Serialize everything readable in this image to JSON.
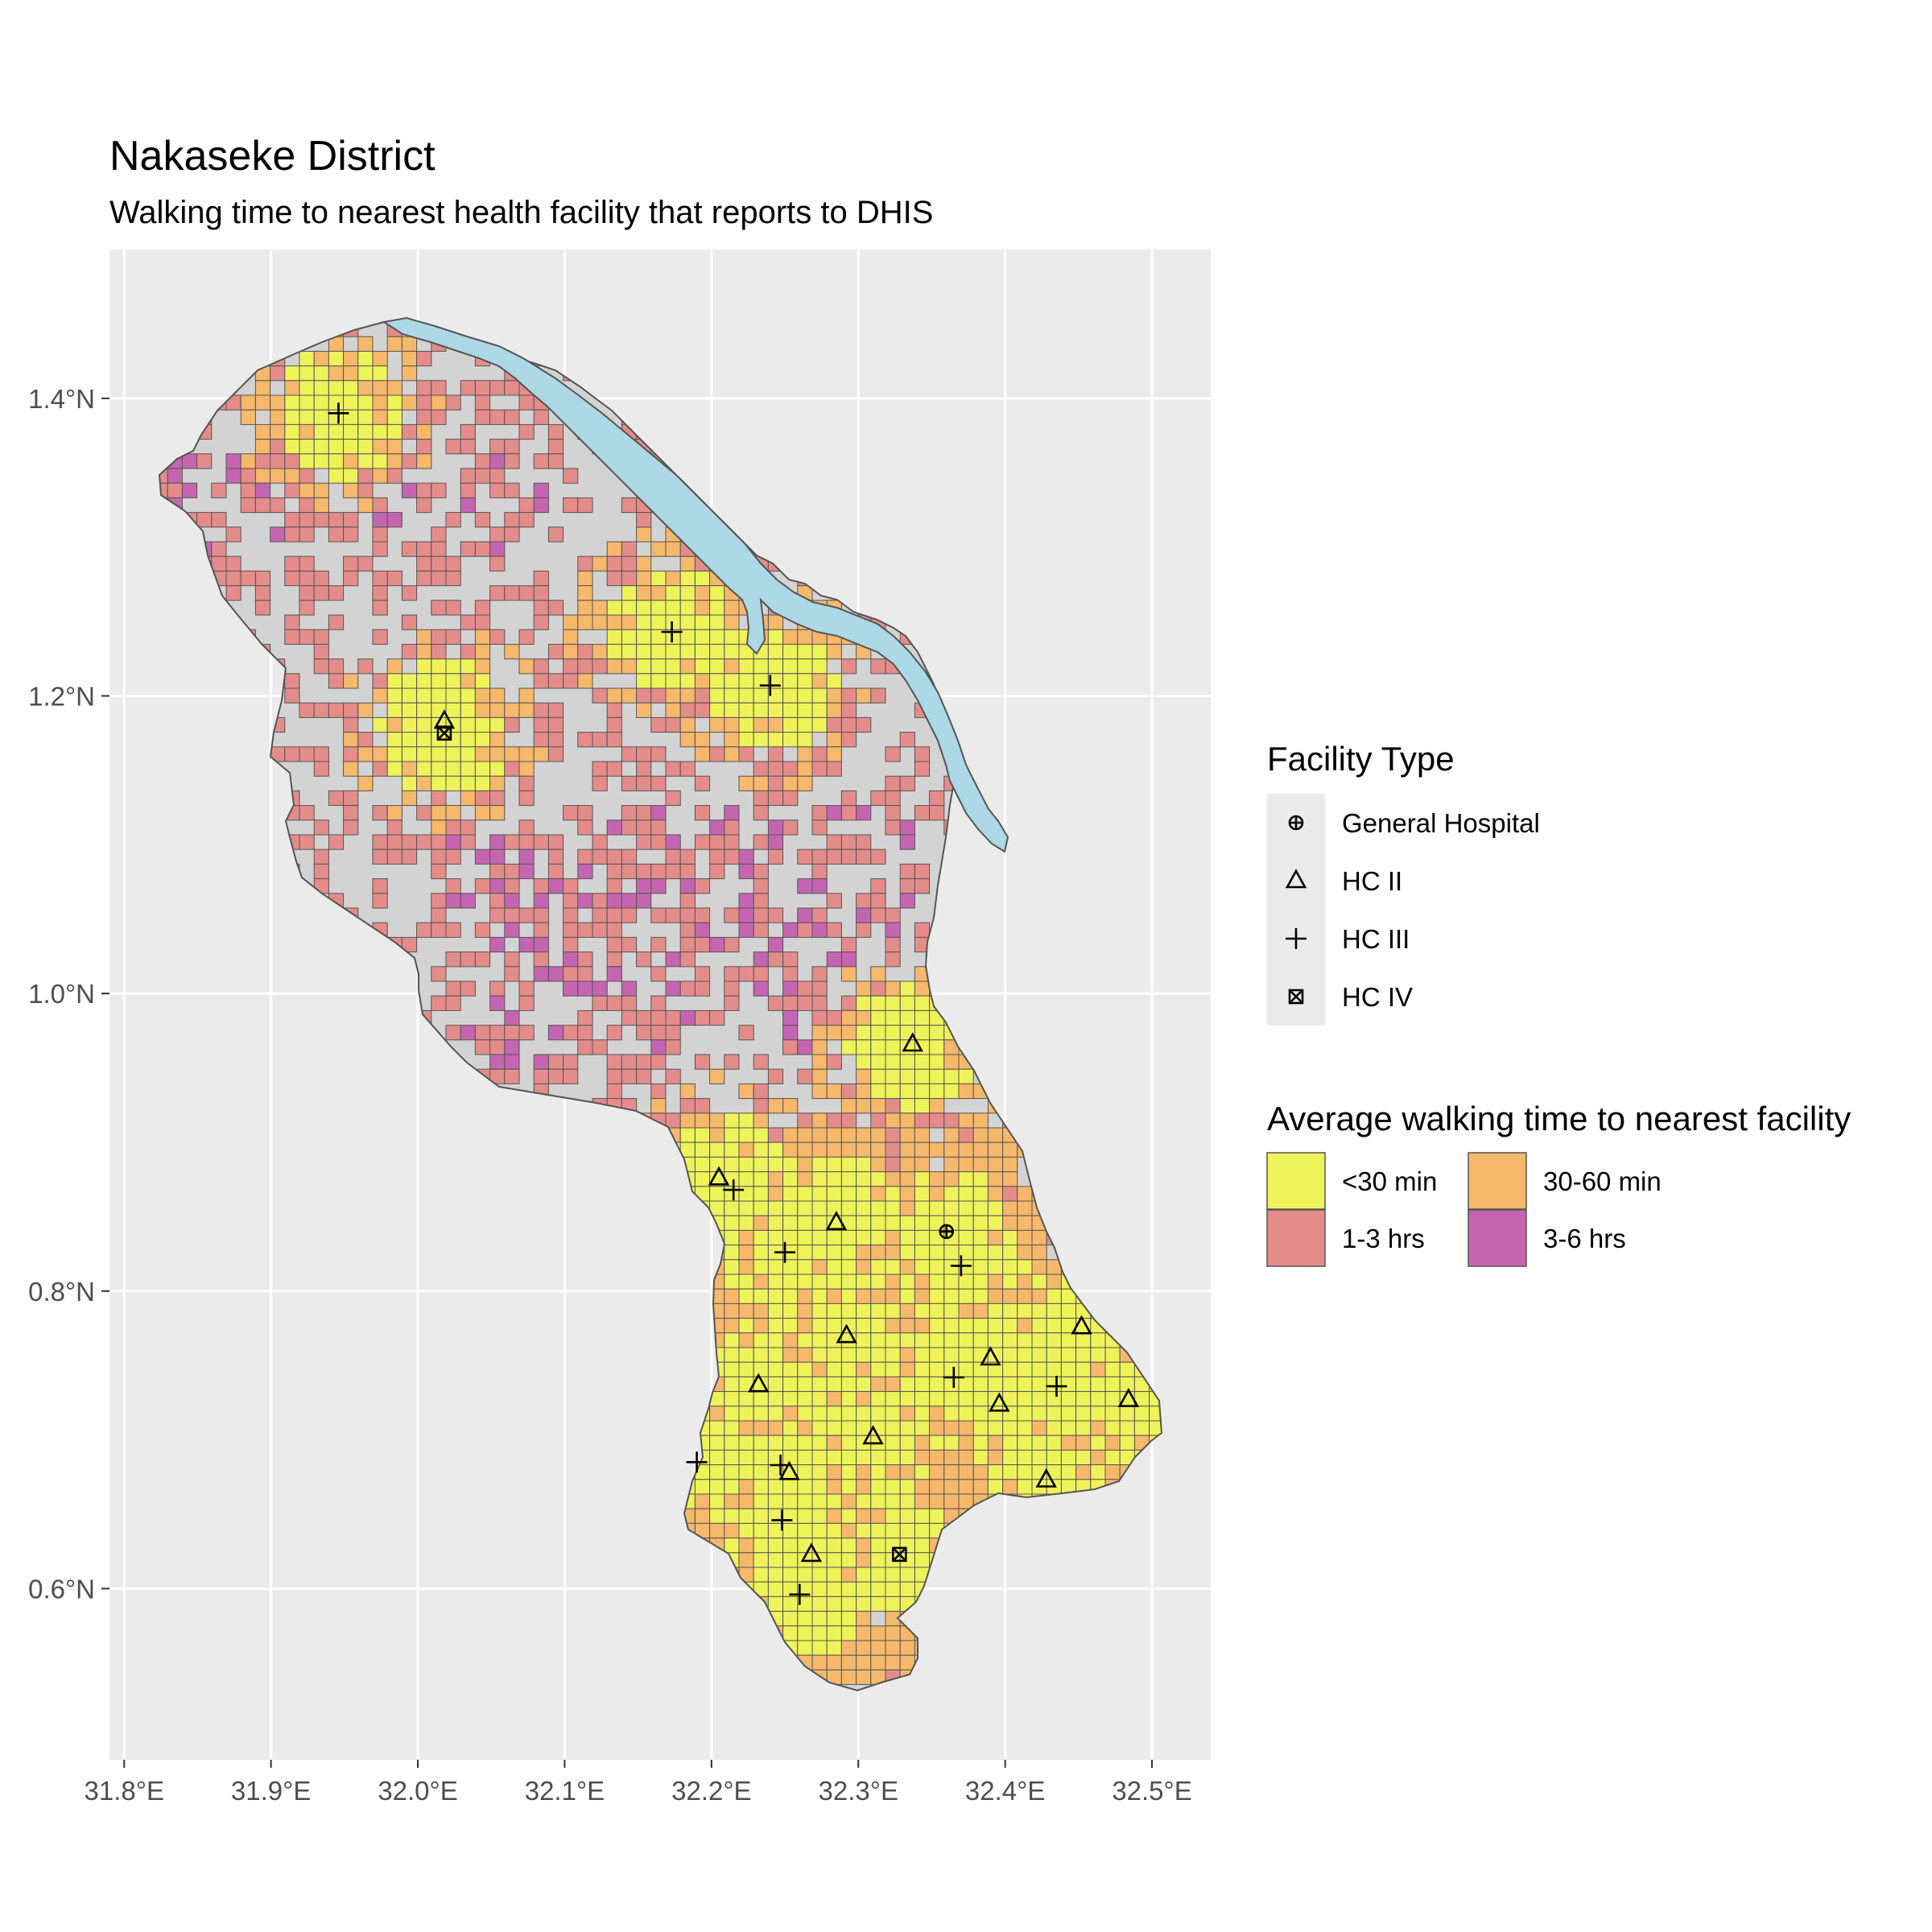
{
  "title": "Nakaseke District",
  "subtitle": "Walking time to nearest health facility that reports to DHIS",
  "colors": {
    "panel": "#ebebeb",
    "grid": "#ffffff",
    "district": "#d3d3d3",
    "district_outline": "#555555",
    "water": "#add8e6",
    "cell_outline": "#555555",
    "lt30": "#eff35a",
    "m30_60": "#f6b86b",
    "h1_3": "#e48c8a",
    "h3_6": "#c565b1"
  },
  "axes": {
    "x_ticks": [
      "31.8°E",
      "31.9°E",
      "32.0°E",
      "32.1°E",
      "32.2°E",
      "32.3°E",
      "32.4°E",
      "32.5°E"
    ],
    "x_values": [
      31.8,
      31.9,
      32.0,
      32.1,
      32.2,
      32.3,
      32.4,
      32.5
    ],
    "y_ticks": [
      "0.6°N",
      "0.8°N",
      "1.0°N",
      "1.2°N",
      "1.4°N"
    ],
    "y_values": [
      0.6,
      0.8,
      1.0,
      1.2,
      1.4
    ],
    "x_range": [
      31.79,
      32.54
    ],
    "y_range": [
      0.485,
      1.5
    ]
  },
  "legend_facility": {
    "title": "Facility Type",
    "items": [
      {
        "label": "General Hospital",
        "shape": "circle-plus"
      },
      {
        "label": "HC II",
        "shape": "triangle"
      },
      {
        "label": "HC III",
        "shape": "plus"
      },
      {
        "label": "HC IV",
        "shape": "square-x"
      }
    ]
  },
  "legend_time": {
    "title": "Average walking time to nearest facility",
    "items": [
      {
        "label": "<30 min",
        "key": "lt30"
      },
      {
        "label": "30-60 min",
        "key": "m30_60"
      },
      {
        "label": "1-3 hrs",
        "key": "h1_3"
      },
      {
        "label": "3-6 hrs",
        "key": "h3_6"
      }
    ]
  },
  "facilities": [
    {
      "type": "General Hospital",
      "lon": 32.36,
      "lat": 0.84
    },
    {
      "type": "HC II",
      "lon": 32.018,
      "lat": 1.183
    },
    {
      "type": "HC II",
      "lon": 32.337,
      "lat": 0.966
    },
    {
      "type": "HC II",
      "lon": 32.205,
      "lat": 0.876
    },
    {
      "type": "HC II",
      "lon": 32.285,
      "lat": 0.846
    },
    {
      "type": "HC II",
      "lon": 32.292,
      "lat": 0.77
    },
    {
      "type": "HC II",
      "lon": 32.452,
      "lat": 0.776
    },
    {
      "type": "HC II",
      "lon": 32.39,
      "lat": 0.755
    },
    {
      "type": "HC II",
      "lon": 32.232,
      "lat": 0.737
    },
    {
      "type": "HC II",
      "lon": 32.396,
      "lat": 0.724
    },
    {
      "type": "HC II",
      "lon": 32.484,
      "lat": 0.727
    },
    {
      "type": "HC II",
      "lon": 32.31,
      "lat": 0.702
    },
    {
      "type": "HC II",
      "lon": 32.253,
      "lat": 0.678
    },
    {
      "type": "HC II",
      "lon": 32.428,
      "lat": 0.673
    },
    {
      "type": "HC II",
      "lon": 32.268,
      "lat": 0.623
    },
    {
      "type": "HC III",
      "lon": 31.946,
      "lat": 1.39
    },
    {
      "type": "HC III",
      "lon": 32.173,
      "lat": 1.243
    },
    {
      "type": "HC III",
      "lon": 32.24,
      "lat": 1.207
    },
    {
      "type": "HC III",
      "lon": 32.215,
      "lat": 0.868
    },
    {
      "type": "HC III",
      "lon": 32.25,
      "lat": 0.826
    },
    {
      "type": "HC III",
      "lon": 32.37,
      "lat": 0.817
    },
    {
      "type": "HC III",
      "lon": 32.365,
      "lat": 0.742
    },
    {
      "type": "HC III",
      "lon": 32.435,
      "lat": 0.736
    },
    {
      "type": "HC III",
      "lon": 32.19,
      "lat": 0.685
    },
    {
      "type": "HC III",
      "lon": 32.247,
      "lat": 0.683
    },
    {
      "type": "HC III",
      "lon": 32.248,
      "lat": 0.646
    },
    {
      "type": "HC III",
      "lon": 32.26,
      "lat": 0.596
    },
    {
      "type": "HC IV",
      "lon": 32.018,
      "lat": 1.175
    },
    {
      "type": "HC IV",
      "lon": 32.328,
      "lat": 0.623
    }
  ]
}
